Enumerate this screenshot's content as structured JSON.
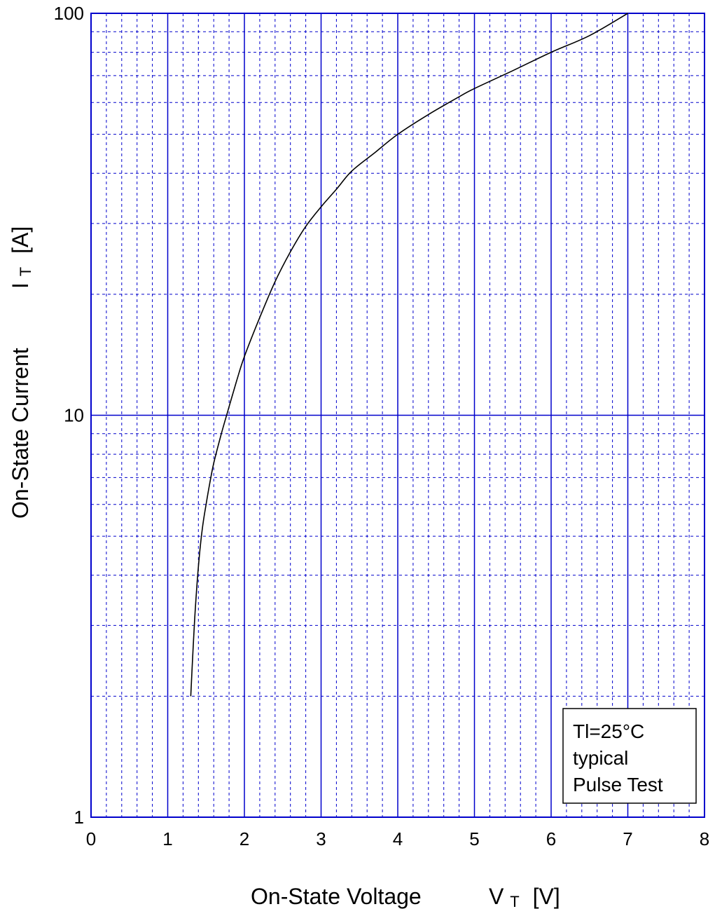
{
  "chart_data": {
    "type": "line",
    "x_axis": {
      "label_main": "On-State Voltage",
      "label_symbol": "V",
      "label_subscript": "T",
      "label_unit": "[V]",
      "scale": "linear",
      "range": [
        0,
        8
      ],
      "ticks": [
        "0",
        "1",
        "2",
        "3",
        "4",
        "5",
        "6",
        "7",
        "8"
      ],
      "major_tick_values": [
        0,
        1,
        2,
        3,
        4,
        5,
        6,
        7,
        8
      ]
    },
    "y_axis": {
      "label_main": "On-State Current",
      "label_symbol": "I",
      "label_subscript": "T",
      "label_unit": "[A]",
      "scale": "log",
      "range": [
        1,
        100
      ],
      "ticks": [
        "1",
        "10",
        "100"
      ],
      "major_tick_values": [
        1,
        10,
        100
      ]
    },
    "grid": {
      "major": "solid",
      "minor": "dashed",
      "color": "#0000cc"
    },
    "series": [
      {
        "color": "#000000",
        "x": [
          1.3,
          1.33,
          1.36,
          1.4,
          1.45,
          1.5,
          1.55,
          1.6,
          1.7,
          1.8,
          1.9,
          2.0,
          2.2,
          2.4,
          2.6,
          2.8,
          3.0,
          3.2,
          3.4,
          3.7,
          4.0,
          4.4,
          4.8,
          5.0,
          5.5,
          6.0,
          6.5,
          7.0
        ],
        "y": [
          2.0,
          2.6,
          3.3,
          4.2,
          5.2,
          6.0,
          6.8,
          7.6,
          9.0,
          10.5,
          12.2,
          14.0,
          17.5,
          21.5,
          25.5,
          29.5,
          33.0,
          36.5,
          40.5,
          45.0,
          50.0,
          56.0,
          62.0,
          65.0,
          72.0,
          80.0,
          88.0,
          100.0
        ]
      }
    ],
    "annotation": {
      "lines": [
        "Tl=25°C",
        "typical",
        "Pulse Test"
      ],
      "position": "bottom-right"
    }
  }
}
